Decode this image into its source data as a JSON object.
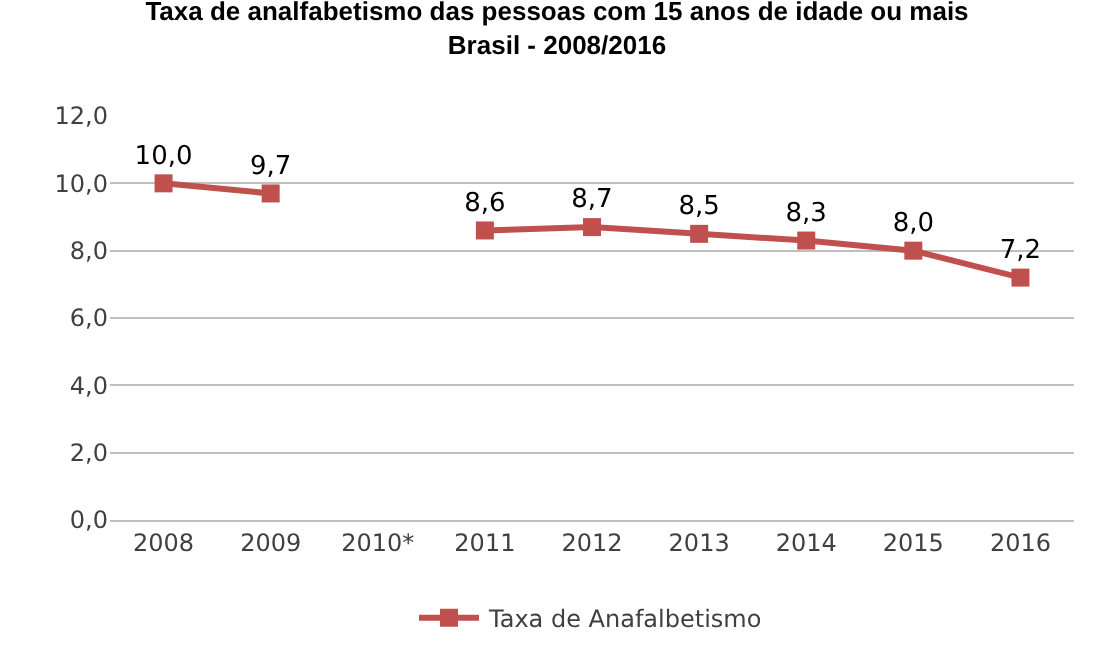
{
  "chart_data": {
    "type": "line",
    "title": "Taxa de analfabetismo das pessoas com 15 anos de idade ou mais",
    "subtitle": "Brasil - 2008/2016",
    "categories": [
      "2008",
      "2009",
      "2010*",
      "2011",
      "2012",
      "2013",
      "2014",
      "2015",
      "2016"
    ],
    "series": [
      {
        "name": "Taxa de Anafalbetismo",
        "color": "#c0504d",
        "values": [
          10.0,
          9.7,
          null,
          8.6,
          8.7,
          8.5,
          8.3,
          8.0,
          7.2
        ],
        "value_labels": [
          "10,0",
          "9,7",
          null,
          "8,6",
          "8,7",
          "8,5",
          "8,3",
          "8,0",
          "7,2"
        ]
      }
    ],
    "ylim": [
      0,
      12
    ],
    "yticks": [
      {
        "value": 0,
        "label": "0,0"
      },
      {
        "value": 2,
        "label": "2,0"
      },
      {
        "value": 4,
        "label": "4,0"
      },
      {
        "value": 6,
        "label": "6,0"
      },
      {
        "value": 8,
        "label": "8,0"
      },
      {
        "value": 10,
        "label": "10,0"
      },
      {
        "value": 12,
        "label": "12,0"
      }
    ],
    "grid": "y",
    "legend": "bottom",
    "marker": "square",
    "line_style": "solid"
  }
}
